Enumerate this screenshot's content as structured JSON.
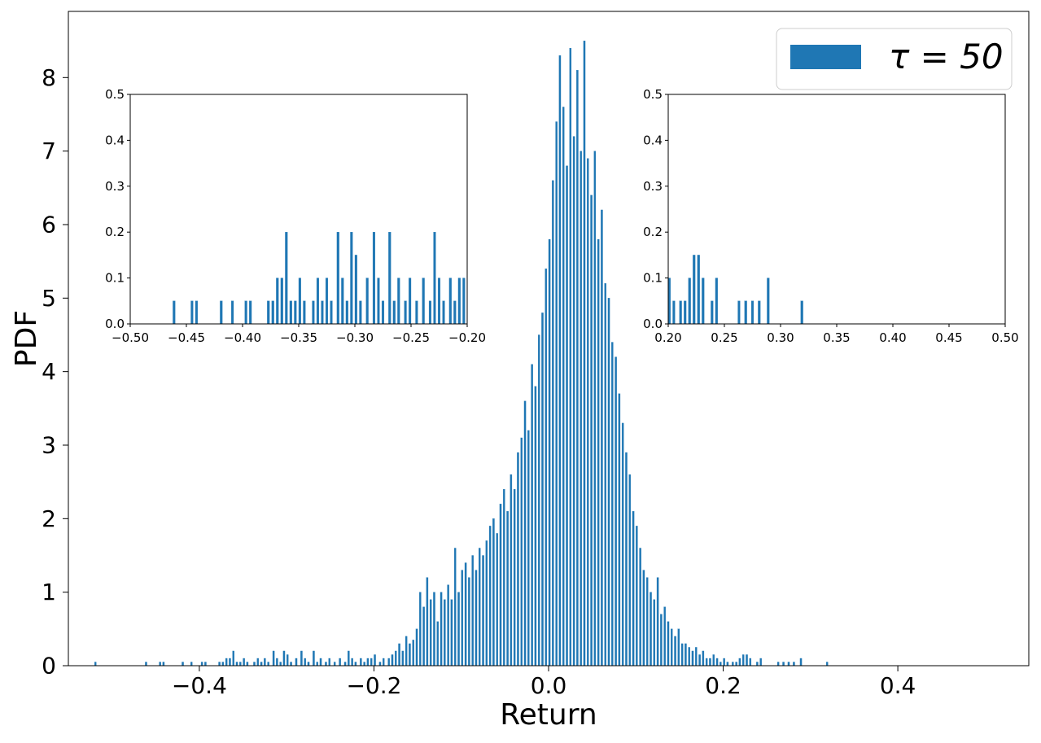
{
  "colors": {
    "bar": "#1f77b4",
    "axes": "#000000",
    "background": "#ffffff",
    "legend_border": "#cccccc"
  },
  "chart_data": [
    {
      "id": "main",
      "type": "bar",
      "description_kind": "histogram",
      "xlabel": "Return",
      "ylabel": "PDF",
      "xlim": [
        -0.55,
        0.55
      ],
      "ylim": [
        0,
        8.9
      ],
      "xticks": [
        -0.4,
        -0.2,
        0.0,
        0.2,
        0.4
      ],
      "xtick_labels": [
        "−0.4",
        "−0.2",
        "0.0",
        "0.2",
        "0.4"
      ],
      "yticks": [
        0,
        1,
        2,
        3,
        4,
        5,
        6,
        7,
        8
      ],
      "ytick_labels": [
        "0",
        "1",
        "2",
        "3",
        "4",
        "5",
        "6",
        "7",
        "8"
      ],
      "grid": false,
      "legend": {
        "placement": "top-right",
        "entries": [
          "τ = 50"
        ]
      },
      "series": [
        {
          "name": "τ = 50",
          "bin_width": 0.002,
          "bins": [
            [
              -0.52,
              0.05
            ],
            [
              -0.462,
              0.05
            ],
            [
              -0.446,
              0.05
            ],
            [
              -0.442,
              0.05
            ],
            [
              -0.42,
              0.05
            ],
            [
              -0.41,
              0.05
            ],
            [
              -0.398,
              0.05
            ],
            [
              -0.394,
              0.05
            ],
            [
              -0.378,
              0.05
            ],
            [
              -0.374,
              0.05
            ],
            [
              -0.37,
              0.1
            ],
            [
              -0.366,
              0.1
            ],
            [
              -0.362,
              0.2
            ],
            [
              -0.358,
              0.05
            ],
            [
              -0.354,
              0.05
            ],
            [
              -0.35,
              0.1
            ],
            [
              -0.346,
              0.05
            ],
            [
              -0.338,
              0.05
            ],
            [
              -0.334,
              0.1
            ],
            [
              -0.33,
              0.05
            ],
            [
              -0.326,
              0.1
            ],
            [
              -0.322,
              0.05
            ],
            [
              -0.316,
              0.2
            ],
            [
              -0.312,
              0.1
            ],
            [
              -0.308,
              0.05
            ],
            [
              -0.304,
              0.2
            ],
            [
              -0.3,
              0.15
            ],
            [
              -0.296,
              0.05
            ],
            [
              -0.29,
              0.1
            ],
            [
              -0.284,
              0.2
            ],
            [
              -0.28,
              0.1
            ],
            [
              -0.276,
              0.05
            ],
            [
              -0.27,
              0.2
            ],
            [
              -0.266,
              0.05
            ],
            [
              -0.262,
              0.1
            ],
            [
              -0.256,
              0.05
            ],
            [
              -0.252,
              0.1
            ],
            [
              -0.246,
              0.05
            ],
            [
              -0.24,
              0.1
            ],
            [
              -0.234,
              0.05
            ],
            [
              -0.23,
              0.2
            ],
            [
              -0.226,
              0.1
            ],
            [
              -0.222,
              0.05
            ],
            [
              -0.216,
              0.1
            ],
            [
              -0.212,
              0.05
            ],
            [
              -0.208,
              0.1
            ],
            [
              -0.204,
              0.1
            ],
            [
              -0.2,
              0.15
            ],
            [
              -0.194,
              0.05
            ],
            [
              -0.19,
              0.1
            ],
            [
              -0.184,
              0.1
            ],
            [
              -0.18,
              0.15
            ],
            [
              -0.176,
              0.2
            ],
            [
              -0.172,
              0.3
            ],
            [
              -0.168,
              0.2
            ],
            [
              -0.164,
              0.4
            ],
            [
              -0.16,
              0.3
            ],
            [
              -0.156,
              0.35
            ],
            [
              -0.152,
              0.5
            ],
            [
              -0.148,
              1.0
            ],
            [
              -0.144,
              0.8
            ],
            [
              -0.14,
              1.2
            ],
            [
              -0.136,
              0.9
            ],
            [
              -0.132,
              1.0
            ],
            [
              -0.128,
              0.6
            ],
            [
              -0.124,
              1.0
            ],
            [
              -0.12,
              0.9
            ],
            [
              -0.116,
              1.1
            ],
            [
              -0.112,
              0.9
            ],
            [
              -0.108,
              1.6
            ],
            [
              -0.104,
              1.0
            ],
            [
              -0.1,
              1.3
            ],
            [
              -0.096,
              1.4
            ],
            [
              -0.092,
              1.2
            ],
            [
              -0.088,
              1.5
            ],
            [
              -0.084,
              1.3
            ],
            [
              -0.08,
              1.6
            ],
            [
              -0.076,
              1.5
            ],
            [
              -0.072,
              1.7
            ],
            [
              -0.068,
              1.9
            ],
            [
              -0.064,
              2.0
            ],
            [
              -0.06,
              1.8
            ],
            [
              -0.056,
              2.2
            ],
            [
              -0.052,
              2.4
            ],
            [
              -0.048,
              2.1
            ],
            [
              -0.044,
              2.6
            ],
            [
              -0.04,
              2.4
            ],
            [
              -0.036,
              2.9
            ],
            [
              -0.032,
              3.1
            ],
            [
              -0.028,
              3.6
            ],
            [
              -0.024,
              3.2
            ],
            [
              -0.02,
              4.1
            ],
            [
              -0.016,
              3.8
            ],
            [
              -0.012,
              4.5
            ],
            [
              -0.008,
              4.8
            ],
            [
              -0.004,
              5.4
            ],
            [
              0.0,
              5.8
            ],
            [
              0.004,
              6.6
            ],
            [
              0.008,
              7.4
            ],
            [
              0.012,
              8.3
            ],
            [
              0.016,
              7.6
            ],
            [
              0.02,
              6.8
            ],
            [
              0.024,
              8.4
            ],
            [
              0.028,
              7.2
            ],
            [
              0.032,
              8.1
            ],
            [
              0.036,
              7.0
            ],
            [
              0.04,
              8.5
            ],
            [
              0.044,
              6.9
            ],
            [
              0.048,
              6.4
            ],
            [
              0.052,
              7.0
            ],
            [
              0.056,
              5.8
            ],
            [
              0.06,
              6.2
            ],
            [
              0.064,
              5.2
            ],
            [
              0.068,
              5.0
            ],
            [
              0.072,
              4.4
            ],
            [
              0.076,
              4.2
            ],
            [
              0.08,
              3.7
            ],
            [
              0.084,
              3.3
            ],
            [
              0.088,
              2.9
            ],
            [
              0.092,
              2.6
            ],
            [
              0.096,
              2.1
            ],
            [
              0.1,
              1.9
            ],
            [
              0.104,
              1.6
            ],
            [
              0.108,
              1.3
            ],
            [
              0.112,
              1.2
            ],
            [
              0.116,
              1.0
            ],
            [
              0.12,
              0.9
            ],
            [
              0.124,
              1.2
            ],
            [
              0.128,
              0.7
            ],
            [
              0.132,
              0.8
            ],
            [
              0.136,
              0.6
            ],
            [
              0.14,
              0.5
            ],
            [
              0.144,
              0.4
            ],
            [
              0.148,
              0.5
            ],
            [
              0.152,
              0.3
            ],
            [
              0.156,
              0.3
            ],
            [
              0.16,
              0.25
            ],
            [
              0.164,
              0.2
            ],
            [
              0.168,
              0.25
            ],
            [
              0.172,
              0.15
            ],
            [
              0.176,
              0.2
            ],
            [
              0.18,
              0.1
            ],
            [
              0.184,
              0.1
            ],
            [
              0.188,
              0.15
            ],
            [
              0.192,
              0.1
            ],
            [
              0.196,
              0.05
            ],
            [
              0.2,
              0.1
            ],
            [
              0.204,
              0.05
            ],
            [
              0.21,
              0.05
            ],
            [
              0.214,
              0.05
            ],
            [
              0.218,
              0.1
            ],
            [
              0.222,
              0.15
            ],
            [
              0.226,
              0.15
            ],
            [
              0.23,
              0.1
            ],
            [
              0.238,
              0.05
            ],
            [
              0.242,
              0.1
            ],
            [
              0.262,
              0.05
            ],
            [
              0.268,
              0.05
            ],
            [
              0.274,
              0.05
            ],
            [
              0.28,
              0.05
            ],
            [
              0.288,
              0.1
            ],
            [
              0.318,
              0.05
            ]
          ]
        }
      ]
    },
    {
      "id": "inset-left",
      "type": "bar",
      "description_kind": "histogram zoom of left tail",
      "xlim": [
        -0.5,
        -0.2
      ],
      "ylim": [
        0,
        0.5
      ],
      "xticks": [
        -0.5,
        -0.45,
        -0.4,
        -0.35,
        -0.3,
        -0.25,
        -0.2
      ],
      "xtick_labels": [
        "−0.50",
        "−0.45",
        "−0.40",
        "−0.35",
        "−0.30",
        "−0.25",
        "−0.20"
      ],
      "yticks": [
        0.0,
        0.1,
        0.2,
        0.3,
        0.4,
        0.5
      ],
      "ytick_labels": [
        "0.0",
        "0.1",
        "0.2",
        "0.3",
        "0.4",
        "0.5"
      ],
      "grid": false,
      "source_series": "main"
    },
    {
      "id": "inset-right",
      "type": "bar",
      "description_kind": "histogram zoom of right tail",
      "xlim": [
        0.2,
        0.5
      ],
      "ylim": [
        0,
        0.5
      ],
      "xticks": [
        0.2,
        0.25,
        0.3,
        0.35,
        0.4,
        0.45,
        0.5
      ],
      "xtick_labels": [
        "0.20",
        "0.25",
        "0.30",
        "0.35",
        "0.40",
        "0.45",
        "0.50"
      ],
      "yticks": [
        0.0,
        0.1,
        0.2,
        0.3,
        0.4,
        0.5
      ],
      "ytick_labels": [
        "0.0",
        "0.1",
        "0.2",
        "0.3",
        "0.4",
        "0.5"
      ],
      "grid": false,
      "source_series": "main"
    }
  ]
}
